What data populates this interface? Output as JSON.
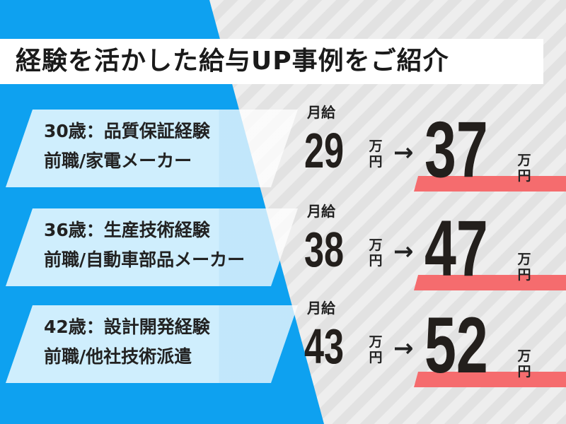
{
  "title": "経験を活かした給与UP事例をご紹介",
  "colors": {
    "blue": "#0ea1f0",
    "card": "#cfeefd",
    "highlight": "#f56c6e",
    "text": "#231f1c"
  },
  "cases": [
    {
      "line1": "30歳：品質保証経験",
      "line2": "前職/家電メーカー",
      "label": "月給",
      "from": "29",
      "to": "37",
      "unit_top": "万",
      "unit_bottom": "円",
      "arrow": "→"
    },
    {
      "line1": "36歳：生産技術経験",
      "line2": "前職/自動車部品メーカー",
      "label": "月給",
      "from": "38",
      "to": "47",
      "unit_top": "万",
      "unit_bottom": "円",
      "arrow": "→"
    },
    {
      "line1": "42歳：設計開発経験",
      "line2": "前職/他社技術派遣",
      "label": "月給",
      "from": "43",
      "to": "52",
      "unit_top": "万",
      "unit_bottom": "円",
      "arrow": "→"
    }
  ]
}
